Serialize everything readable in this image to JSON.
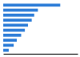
{
  "chart_data": {
    "type": "bar",
    "orientation": "horizontal",
    "categories": [
      null,
      null,
      null,
      null,
      null,
      null,
      null,
      null,
      null,
      null
    ],
    "values": [
      460,
      280,
      250,
      230,
      200,
      175,
      145,
      110,
      85,
      45
    ],
    "color": "#2f7ed8",
    "xlim": [
      0,
      600
    ],
    "tick_labels": false
  }
}
